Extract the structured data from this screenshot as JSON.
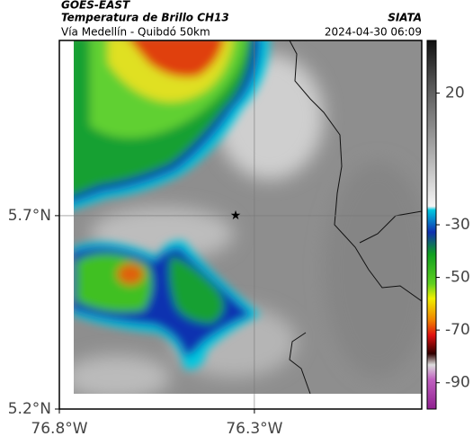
{
  "header": {
    "product": "GOES-EAST",
    "title": "Temperatura de Brillo CH13",
    "org": "SIATA",
    "subtitle": "Vía Medellín - Quibdó 50km",
    "timestamp": "2024-04-30 06:09"
  },
  "map": {
    "xlim": [
      -76.8,
      -75.871
    ],
    "ylim": [
      5.2,
      6.153
    ],
    "xticks": [
      {
        "value": -76.8,
        "label": "76.8°W"
      },
      {
        "value": -76.3,
        "label": "76.3°W"
      }
    ],
    "yticks": [
      {
        "value": 5.2,
        "label": "5.2°N"
      },
      {
        "value": 5.7,
        "label": "5.7°N"
      }
    ],
    "grid": true
  },
  "colorbar": {
    "lim": [
      40,
      -100
    ],
    "ticks": [
      20,
      -30,
      -50,
      -70,
      -90
    ]
  }
}
